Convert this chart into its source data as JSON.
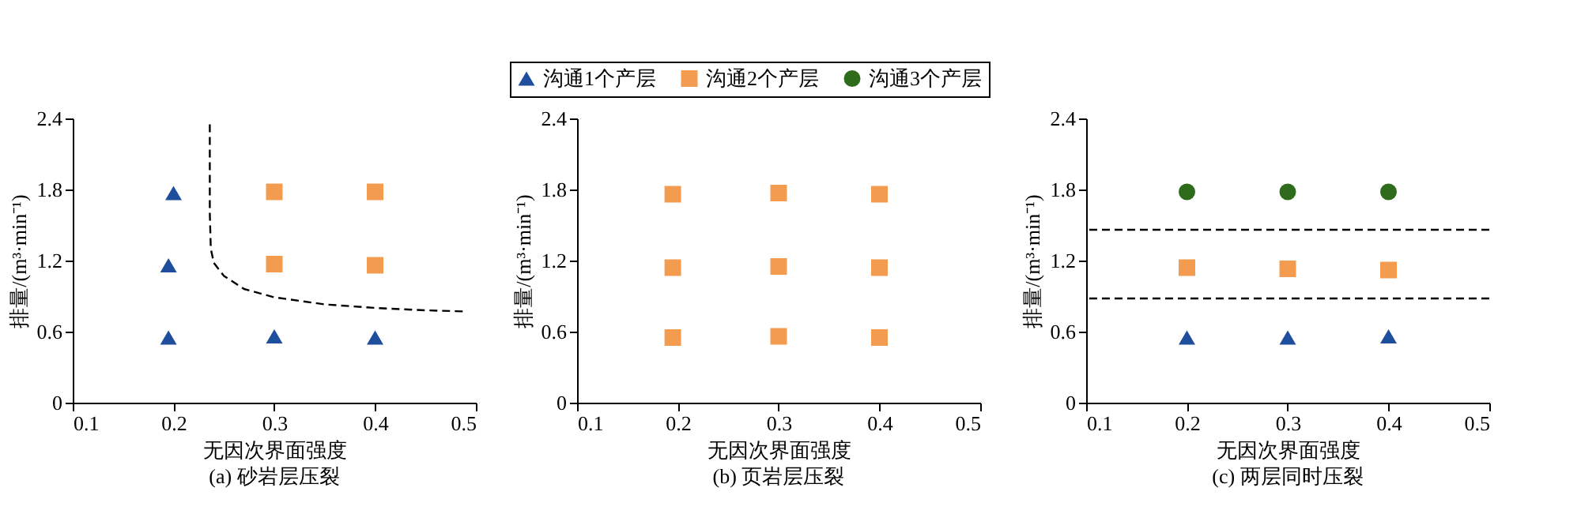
{
  "chart_data": [
    {
      "type": "scatter",
      "title": "(a) 砂岩层压裂",
      "xlabel": "无因次界面强度",
      "ylabel": "排量/(m³·min⁻¹)",
      "xlim": [
        0.1,
        0.5
      ],
      "ylim": [
        0,
        2.4
      ],
      "xticks": [
        0.1,
        0.2,
        0.3,
        0.4,
        0.5
      ],
      "yticks": [
        0,
        0.6,
        1.2,
        1.8,
        2.4
      ],
      "grid": false,
      "legend": "top",
      "series": [
        {
          "name": "沟通1个产层",
          "color": "#1f4e9c",
          "marker": "triangle",
          "x": [
            0.2,
            0.195,
            0.195,
            0.3,
            0.4
          ],
          "values": [
            1.77,
            1.16,
            0.55,
            0.56,
            0.55
          ]
        },
        {
          "name": "沟通2个产层",
          "color": "#f39c50",
          "marker": "square",
          "x": [
            0.3,
            0.4,
            0.3,
            0.4
          ],
          "values": [
            1.78,
            1.78,
            1.17,
            1.16
          ]
        },
        {
          "type": "line",
          "color": "#000000",
          "line_style": "dashed",
          "x": [
            0.236,
            0.236,
            0.237,
            0.24,
            0.25,
            0.27,
            0.3,
            0.35,
            0.4,
            0.45,
            0.49
          ],
          "values": [
            2.35,
            1.6,
            1.3,
            1.18,
            1.07,
            0.96,
            0.89,
            0.83,
            0.8,
            0.78,
            0.77
          ]
        }
      ]
    },
    {
      "type": "scatter",
      "title": "(b) 页岩层压裂",
      "xlabel": "无因次界面强度",
      "ylabel": "排量/(m³·min⁻¹)",
      "xlim": [
        0.1,
        0.5
      ],
      "ylim": [
        0,
        2.4
      ],
      "xticks": [
        0.1,
        0.2,
        0.3,
        0.4,
        0.5
      ],
      "yticks": [
        0,
        0.6,
        1.2,
        1.8,
        2.4
      ],
      "grid": false,
      "legend": "top",
      "series": [
        {
          "name": "沟通2个产层",
          "color": "#f39c50",
          "marker": "square",
          "x": [
            0.195,
            0.3,
            0.4,
            0.195,
            0.3,
            0.4,
            0.195,
            0.3,
            0.4
          ],
          "values": [
            1.76,
            1.77,
            1.76,
            1.14,
            1.15,
            1.14,
            0.55,
            0.56,
            0.55
          ]
        }
      ]
    },
    {
      "type": "scatter",
      "title": "(c) 两层同时压裂",
      "xlabel": "无因次界面强度",
      "ylabel": "排量/(m³·min⁻¹)",
      "xlim": [
        0.1,
        0.5
      ],
      "ylim": [
        0,
        2.4
      ],
      "xticks": [
        0.1,
        0.2,
        0.3,
        0.4,
        0.5
      ],
      "yticks": [
        0,
        0.6,
        1.2,
        1.8,
        2.4
      ],
      "grid": false,
      "legend": "top",
      "series": [
        {
          "name": "沟通3个产层",
          "color": "#2e6b1a",
          "marker": "circle",
          "x": [
            0.2,
            0.3,
            0.4
          ],
          "values": [
            1.78,
            1.78,
            1.78
          ]
        },
        {
          "name": "沟通2个产层",
          "color": "#f39c50",
          "marker": "square",
          "x": [
            0.2,
            0.3,
            0.4
          ],
          "values": [
            1.14,
            1.13,
            1.12
          ]
        },
        {
          "name": "沟通1个产层",
          "color": "#1f4e9c",
          "marker": "triangle",
          "x": [
            0.2,
            0.3,
            0.4
          ],
          "values": [
            0.55,
            0.55,
            0.56
          ]
        }
      ],
      "ref_lines": [
        {
          "axis": "y",
          "value": 1.46,
          "color": "#000000",
          "line_style": "dashed"
        },
        {
          "axis": "y",
          "value": 0.88,
          "color": "#000000",
          "line_style": "dashed"
        }
      ]
    }
  ]
}
